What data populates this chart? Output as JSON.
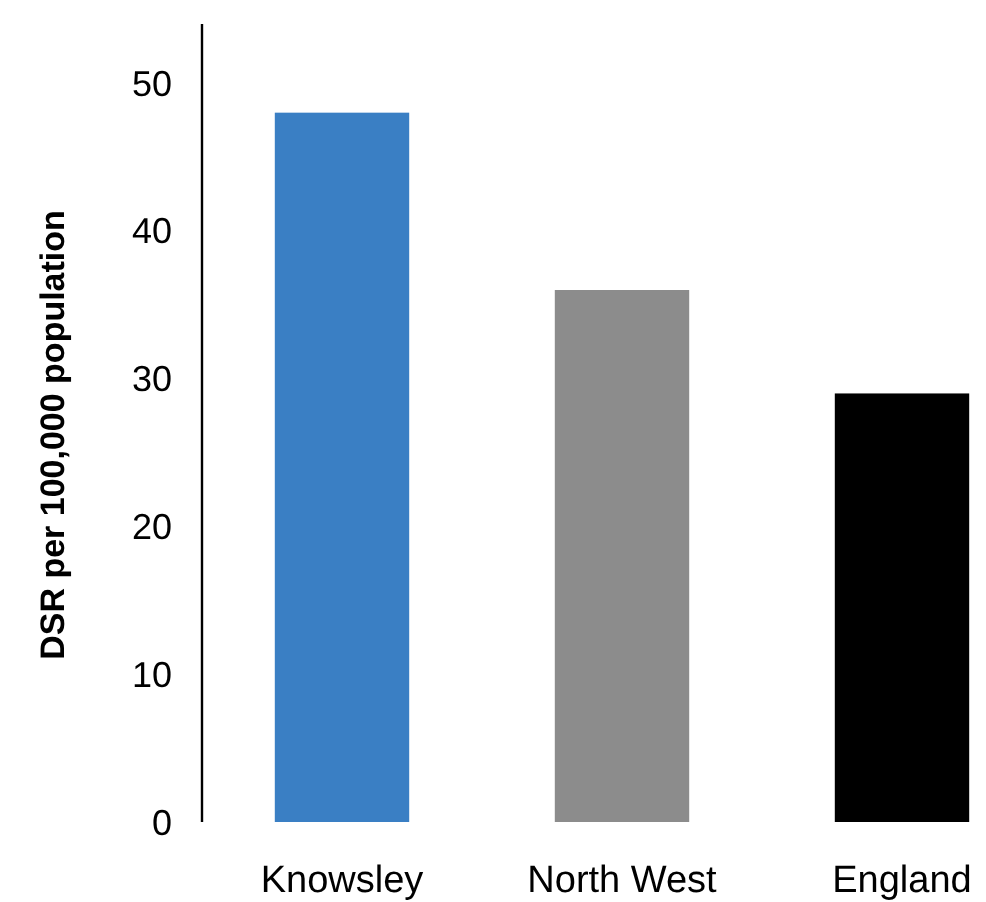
{
  "chart_data": {
    "type": "bar",
    "ylabel": "DSR per 100,000 population",
    "categories": [
      "Knowsley",
      "North West",
      "England"
    ],
    "values": [
      48,
      36,
      29
    ],
    "colors": [
      "#3a7fc4",
      "#8c8c8c",
      "#000000"
    ],
    "ylim": [
      0,
      54
    ],
    "yticks": [
      0,
      10,
      20,
      30,
      40,
      50
    ],
    "grid": false
  }
}
